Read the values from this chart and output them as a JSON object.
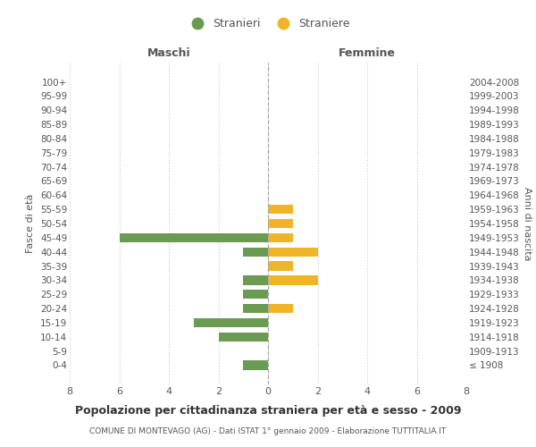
{
  "age_groups": [
    "100+",
    "95-99",
    "90-94",
    "85-89",
    "80-84",
    "75-79",
    "70-74",
    "65-69",
    "60-64",
    "55-59",
    "50-54",
    "45-49",
    "40-44",
    "35-39",
    "30-34",
    "25-29",
    "20-24",
    "15-19",
    "10-14",
    "5-9",
    "0-4"
  ],
  "birth_years": [
    "≤ 1908",
    "1909-1913",
    "1914-1918",
    "1919-1923",
    "1924-1928",
    "1929-1933",
    "1934-1938",
    "1939-1943",
    "1944-1948",
    "1949-1953",
    "1954-1958",
    "1959-1963",
    "1964-1968",
    "1969-1973",
    "1974-1978",
    "1979-1983",
    "1984-1988",
    "1989-1993",
    "1994-1998",
    "1999-2003",
    "2004-2008"
  ],
  "males": [
    0,
    0,
    0,
    0,
    0,
    0,
    0,
    0,
    0,
    0,
    0,
    6,
    1,
    0,
    1,
    1,
    1,
    3,
    2,
    0,
    1
  ],
  "females": [
    0,
    0,
    0,
    0,
    0,
    0,
    0,
    0,
    0,
    1,
    1,
    1,
    2,
    1,
    2,
    0,
    1,
    0,
    0,
    0,
    0
  ],
  "male_color": "#6b9a52",
  "female_color": "#f0b429",
  "title": "Popolazione per cittadinanza straniera per età e sesso - 2009",
  "subtitle": "COMUNE DI MONTEVAGO (AG) - Dati ISTAT 1° gennaio 2009 - Elaborazione TUTTITALIA.IT",
  "xlabel_left": "Maschi",
  "xlabel_right": "Femmine",
  "ylabel_left": "Fasce di età",
  "ylabel_right": "Anni di nascita",
  "legend_male": "Stranieri",
  "legend_female": "Straniere",
  "xlim": 8,
  "background_color": "#ffffff",
  "grid_color": "#cccccc"
}
